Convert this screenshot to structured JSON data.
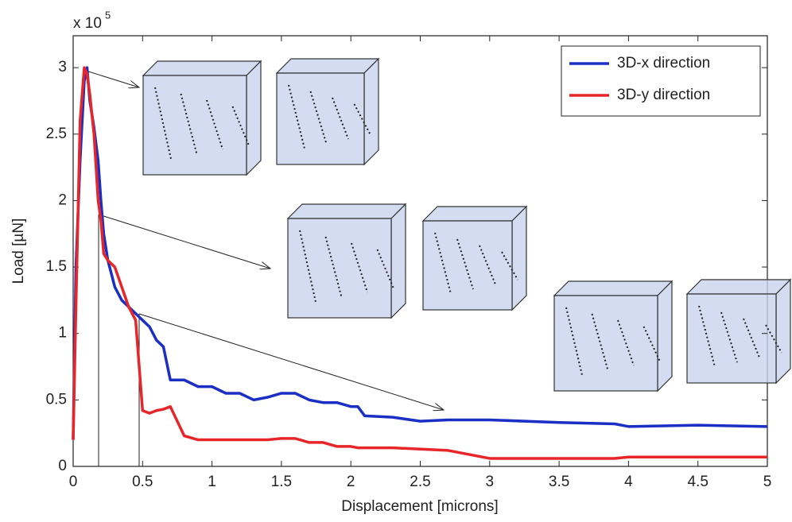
{
  "chart_data": {
    "type": "line",
    "y_scale_label": {
      "base": "x 10",
      "exponent": "5"
    },
    "x_label": "Displacement [microns]",
    "y_label": "Load [µN]",
    "x": [
      0,
      0.02,
      0.05,
      0.08,
      0.1,
      0.12,
      0.15,
      0.18,
      0.2,
      0.22,
      0.25,
      0.3,
      0.35,
      0.4,
      0.45,
      0.5,
      0.55,
      0.6,
      0.65,
      0.7,
      0.8,
      0.9,
      1.0,
      1.1,
      1.2,
      1.3,
      1.4,
      1.5,
      1.6,
      1.7,
      1.8,
      1.9,
      2.0,
      2.05,
      2.1,
      2.3,
      2.5,
      2.7,
      3.0,
      3.5,
      3.9,
      4.0,
      4.5,
      5.0
    ],
    "series": [
      {
        "name": "3D-x direction",
        "color": "#1c2fc4",
        "values": [
          0.2,
          1.5,
          2.3,
          2.9,
          3.0,
          2.75,
          2.55,
          2.3,
          2.0,
          1.75,
          1.55,
          1.35,
          1.25,
          1.2,
          1.15,
          1.1,
          1.05,
          0.95,
          0.9,
          0.65,
          0.65,
          0.6,
          0.6,
          0.55,
          0.55,
          0.5,
          0.52,
          0.55,
          0.55,
          0.5,
          0.48,
          0.48,
          0.45,
          0.45,
          0.38,
          0.37,
          0.34,
          0.35,
          0.35,
          0.33,
          0.32,
          0.3,
          0.31,
          0.3
        ]
      },
      {
        "name": "3D-y direction",
        "color": "#e8262a",
        "values": [
          0.2,
          1.2,
          2.6,
          3.0,
          2.95,
          2.8,
          2.5,
          2.0,
          1.85,
          1.6,
          1.55,
          1.5,
          1.35,
          1.2,
          1.1,
          0.42,
          0.4,
          0.42,
          0.43,
          0.45,
          0.23,
          0.2,
          0.2,
          0.2,
          0.2,
          0.2,
          0.2,
          0.21,
          0.21,
          0.18,
          0.18,
          0.15,
          0.15,
          0.14,
          0.14,
          0.14,
          0.13,
          0.12,
          0.06,
          0.06,
          0.06,
          0.07,
          0.07,
          0.07
        ]
      }
    ],
    "xlim": [
      0,
      5
    ],
    "ylim": [
      0,
      3.24
    ],
    "xticks": [
      0,
      0.5,
      1,
      1.5,
      2,
      2.5,
      3,
      3.5,
      4,
      4.5,
      5
    ],
    "yticks": [
      0,
      0.5,
      1,
      1.5,
      2,
      2.5,
      3
    ],
    "legend": "upper right"
  }
}
